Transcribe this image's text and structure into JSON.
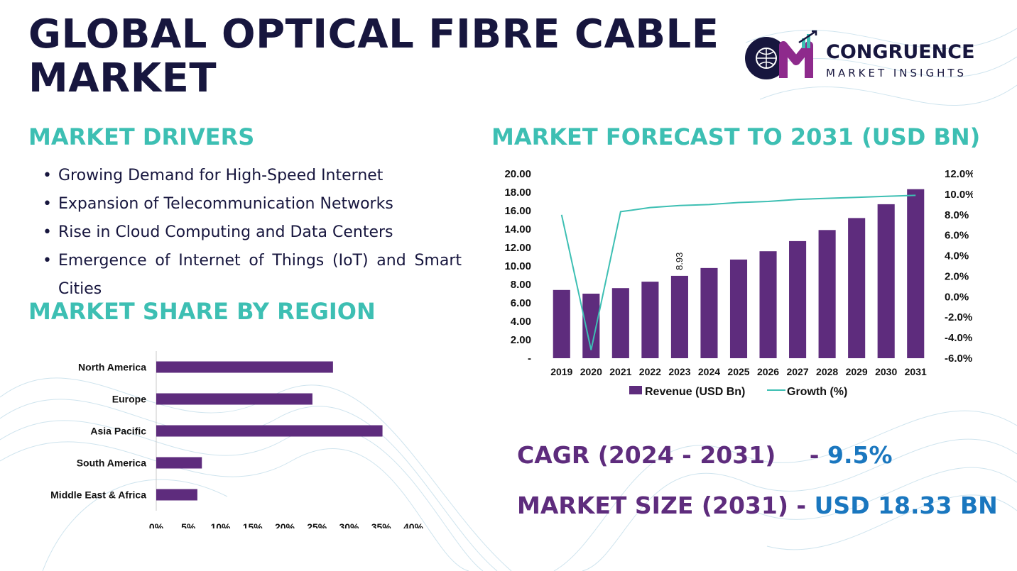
{
  "title": {
    "line1": "GLOBAL OPTICAL FIBRE CABLE",
    "line2": "MARKET"
  },
  "logo": {
    "name": "CONGRUENCE",
    "tagline": "MARKET INSIGHTS"
  },
  "drivers": {
    "heading": "MARKET DRIVERS",
    "items": [
      "Growing Demand for High-Speed Internet",
      "Expansion of Telecommunication Networks",
      "Rise in Cloud Computing and Data Centers",
      "Emergence of Internet of Things (IoT) and Smart Cities"
    ]
  },
  "forecast": {
    "heading": "MARKET FORECAST TO 2031 (USD BN)"
  },
  "region": {
    "heading": "MARKET SHARE BY REGION"
  },
  "kpis": {
    "cagr_label": "CAGR (2024 - 2031)",
    "cagr_value": "9.5%",
    "size_label": "MARKET SIZE (2031)",
    "size_value": "USD 18.33 BN",
    "separator": "-"
  },
  "colors": {
    "navy": "#17163e",
    "teal": "#3dbfb3",
    "purple": "#5e2c7d",
    "blue": "#1a77bf",
    "line": "#3dbfb3"
  },
  "chart_data": [
    {
      "type": "bar",
      "categories": [
        "2019",
        "2020",
        "2021",
        "2022",
        "2023",
        "2024",
        "2025",
        "2026",
        "2027",
        "2028",
        "2029",
        "2030",
        "2031"
      ],
      "series": [
        {
          "name": "Revenue (USD Bn)",
          "type": "bar",
          "axis": "left",
          "values": [
            7.4,
            7.0,
            7.6,
            8.3,
            8.93,
            9.78,
            10.7,
            11.6,
            12.7,
            13.9,
            15.2,
            16.7,
            18.33
          ]
        },
        {
          "name": "Growth (%)",
          "type": "line",
          "axis": "right",
          "values": [
            8.0,
            -5.2,
            8.3,
            8.7,
            8.9,
            9.0,
            9.2,
            9.3,
            9.5,
            9.6,
            9.7,
            9.8,
            9.9
          ]
        }
      ],
      "data_labels": [
        {
          "category": "2023",
          "text": "8.93"
        }
      ],
      "left_ticks": [
        "-",
        "2.00",
        "4.00",
        "6.00",
        "8.00",
        "10.00",
        "12.00",
        "14.00",
        "16.00",
        "18.00",
        "20.00"
      ],
      "right_ticks": [
        "-6.0%",
        "-4.0%",
        "-2.0%",
        "0.0%",
        "2.0%",
        "4.0%",
        "6.0%",
        "8.0%",
        "10.0%",
        "12.0%"
      ],
      "ylim": [
        0,
        20
      ],
      "y2lim": [
        -6,
        12
      ],
      "legend": "bottom"
    },
    {
      "type": "bar",
      "orientation": "horizontal",
      "categories": [
        "North America",
        "Europe",
        "Asia Pacific",
        "South America",
        "Middle East & Africa"
      ],
      "values": [
        27.5,
        24.3,
        35.2,
        7.1,
        6.4
      ],
      "x_ticks": [
        "0%",
        "5%",
        "10%",
        "15%",
        "20%",
        "25%",
        "30%",
        "35%",
        "40%"
      ],
      "xlim": [
        0,
        40
      ]
    }
  ]
}
